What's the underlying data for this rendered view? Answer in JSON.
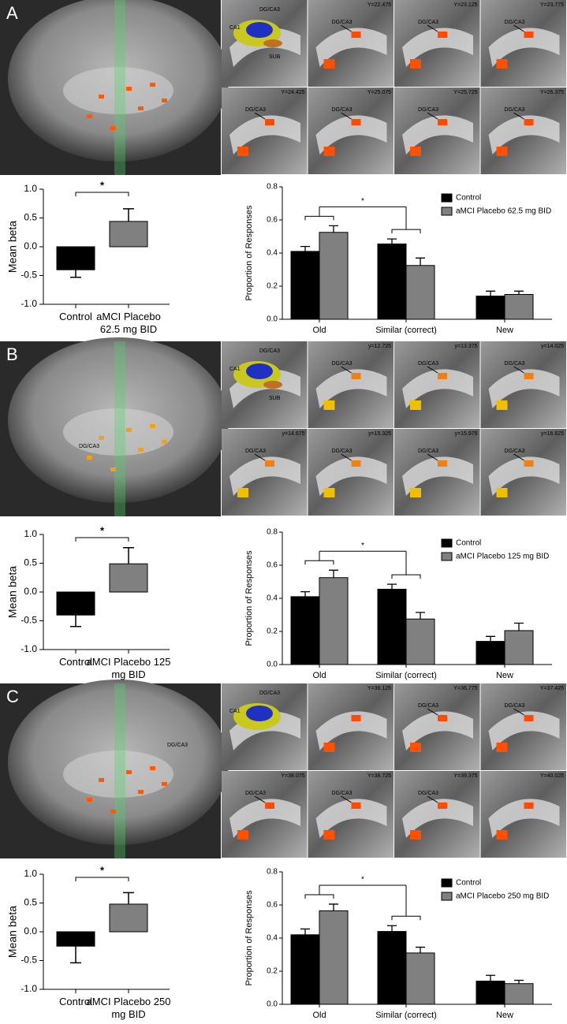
{
  "panels": [
    {
      "label": "A",
      "inset_labels": [
        "CA1",
        "DG/CA3",
        "SUB"
      ],
      "slices": [
        {
          "y": "Y=22.475",
          "tag": "DG/CA3"
        },
        {
          "y": "Y=23.125",
          "tag": "DG/CA3"
        },
        {
          "y": "Y=23.775",
          "tag": "DG/CA3"
        },
        {
          "y": "Y=24.425",
          "tag": "DG/CA3"
        },
        {
          "y": "Y=25.075",
          "tag": "DG/CA3"
        },
        {
          "y": "Y=25.725",
          "tag": "DG/CA3"
        },
        {
          "y": "Y=26.375",
          "tag": "DG/CA3"
        }
      ]
    },
    {
      "label": "B",
      "brain_tag": "DG/CA3",
      "inset_labels": [
        "CA1",
        "DG/CA3",
        "SUB"
      ],
      "slices": [
        {
          "y": "y=12.725",
          "tag": "DG/CA3"
        },
        {
          "y": "y=13.375",
          "tag": "DG/CA3"
        },
        {
          "y": "y=14.025",
          "tag": "DG/CA3"
        },
        {
          "y": "y=14.675",
          "tag": "DG/CA3"
        },
        {
          "y": "y=15.325",
          "tag": "DG/CA3"
        },
        {
          "y": "y=15.975",
          "tag": "DG/CA3"
        },
        {
          "y": "y=16.625",
          "tag": "DG/CA3"
        }
      ]
    },
    {
      "label": "C",
      "brain_tag": "DG/CA3",
      "inset_labels": [
        "CA1",
        "DG/CA3"
      ],
      "slices": [
        {
          "y": "Y=36.125"
        },
        {
          "y": "Y=36.775",
          "tag": "DG/CA3"
        },
        {
          "y": "Y=37.425",
          "tag": "DG/CA3"
        },
        {
          "y": "Y=38.075",
          "tag": "DG/CA3"
        },
        {
          "y": "Y=38.725",
          "tag": "DG/CA3"
        },
        {
          "y": "Y=39.375",
          "tag": "DG/CA3"
        },
        {
          "y": "Y=40.025"
        }
      ]
    }
  ],
  "chart_data": [
    {
      "type": "bar",
      "y_label": "Mean beta",
      "categories": [
        "Control",
        "aMCI Placebo 62.5 mg BID"
      ],
      "values": [
        -0.4,
        0.44
      ],
      "errors": [
        0.13,
        0.22
      ],
      "colors": [
        "#000000",
        "#808080"
      ],
      "ylim": [
        -1,
        1
      ],
      "yticks": [
        {
          "value": -1,
          "label": "-1.0"
        },
        -0.5,
        {
          "value": 0,
          "label": "0.0"
        },
        0.5,
        {
          "value": 1,
          "label": "1.0"
        }
      ],
      "annotation": "*"
    },
    {
      "type": "grouped_bar",
      "y_label": "Proportion of Responses",
      "categories": [
        "Old",
        "Similar (correct)",
        "New"
      ],
      "series": [
        {
          "name": "Control",
          "color": "#000000",
          "values": [
            0.41,
            0.455,
            0.14
          ],
          "errors": [
            0.03,
            0.03,
            0.03
          ]
        },
        {
          "name": "aMCI Placebo 62.5 mg BID",
          "color": "#808080",
          "values": [
            0.525,
            0.325,
            0.15
          ],
          "errors": [
            0.04,
            0.045,
            0.02
          ]
        }
      ],
      "ylim": [
        0,
        0.8
      ],
      "yticks": [
        {
          "value": 0,
          "label": "0.0"
        },
        0.2,
        0.4,
        0.6,
        0.8
      ],
      "annotation": "*"
    },
    {
      "type": "bar",
      "y_label": "Mean beta",
      "categories": [
        "Control",
        "aMCI Placebo 125 mg BID"
      ],
      "values": [
        -0.4,
        0.49
      ],
      "errors": [
        0.2,
        0.28
      ],
      "colors": [
        "#000000",
        "#808080"
      ],
      "ylim": [
        -1,
        1
      ],
      "yticks": [
        {
          "value": -1,
          "label": "-1.0"
        },
        -0.5,
        {
          "value": 0,
          "label": "0.0"
        },
        0.5,
        {
          "value": 1,
          "label": "1.0"
        }
      ],
      "annotation": "*"
    },
    {
      "type": "grouped_bar",
      "y_label": "Proportion of Responses",
      "categories": [
        "Old",
        "Similar (correct)",
        "New"
      ],
      "series": [
        {
          "name": "Control",
          "color": "#000000",
          "values": [
            0.41,
            0.455,
            0.14
          ],
          "errors": [
            0.03,
            0.03,
            0.03
          ]
        },
        {
          "name": "aMCI Placebo 125 mg BID",
          "color": "#808080",
          "values": [
            0.525,
            0.275,
            0.205
          ],
          "errors": [
            0.045,
            0.04,
            0.045
          ]
        }
      ],
      "ylim": [
        0,
        0.8
      ],
      "yticks": [
        {
          "value": 0,
          "label": "0.0"
        },
        0.2,
        0.4,
        0.6,
        0.8
      ],
      "annotation": "*"
    },
    {
      "type": "bar",
      "y_label": "Mean beta",
      "categories": [
        "Control",
        "aMCI Placebo 250 mg BID"
      ],
      "values": [
        -0.25,
        0.48
      ],
      "errors": [
        0.29,
        0.2
      ],
      "colors": [
        "#000000",
        "#808080"
      ],
      "ylim": [
        -1,
        1
      ],
      "yticks": [
        {
          "value": -1,
          "label": "-1.0"
        },
        -0.5,
        {
          "value": 0,
          "label": "0.0"
        },
        0.5,
        {
          "value": 1,
          "label": "1.0"
        }
      ],
      "annotation": "*"
    },
    {
      "type": "grouped_bar",
      "y_label": "Proportion of Responses",
      "categories": [
        "Old",
        "Similar (correct)",
        "New"
      ],
      "series": [
        {
          "name": "Control",
          "color": "#000000",
          "values": [
            0.42,
            0.44,
            0.14
          ],
          "errors": [
            0.035,
            0.035,
            0.035
          ]
        },
        {
          "name": "aMCI Placebo 250 mg BID",
          "color": "#808080",
          "values": [
            0.565,
            0.31,
            0.125
          ],
          "errors": [
            0.04,
            0.035,
            0.02
          ]
        }
      ],
      "ylim": [
        0,
        0.8
      ],
      "yticks": [
        {
          "value": 0,
          "label": "0.0"
        },
        0.2,
        0.4,
        0.6,
        0.8
      ],
      "annotation": "*"
    }
  ]
}
